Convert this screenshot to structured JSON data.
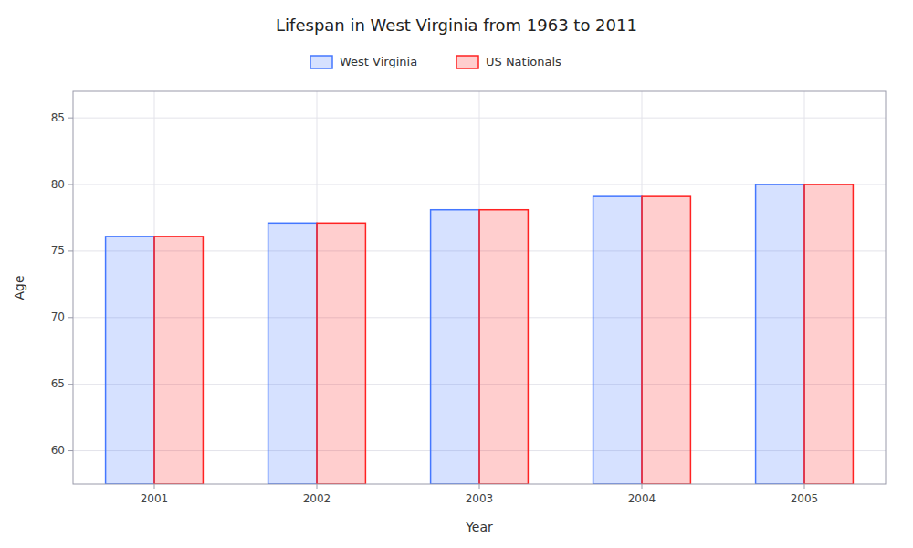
{
  "chart_data": {
    "type": "bar",
    "title": "Lifespan in West Virginia from 1963 to 2011",
    "x_label": "Year",
    "y_label": "Age",
    "categories": [
      "2001",
      "2002",
      "2003",
      "2004",
      "2005"
    ],
    "series": [
      {
        "name": "West Virginia",
        "color": "#4477ff",
        "values": [
          76.1,
          77.1,
          78.1,
          79.1,
          80.0
        ]
      },
      {
        "name": "US Nationals",
        "color": "#ff2222",
        "values": [
          76.1,
          77.1,
          78.1,
          79.1,
          80.0
        ]
      }
    ],
    "ylim": [
      57.5,
      87
    ],
    "yticks": [
      60,
      65,
      70,
      75,
      80,
      85
    ],
    "grid": true,
    "legend": "top"
  }
}
